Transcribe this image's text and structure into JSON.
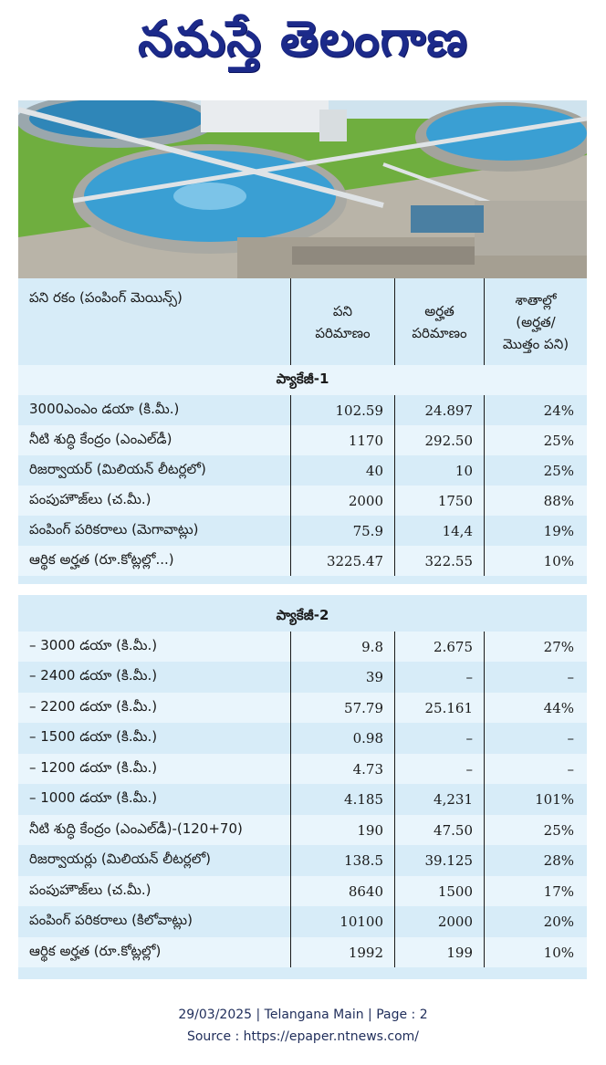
{
  "masthead": {
    "title": "నమస్తే తెలంగాణ"
  },
  "photo": {
    "icon": "water-treatment-plant-photo"
  },
  "table": {
    "header": {
      "col1": "పని రకం (పంపింగ్ మెయిన్స్)",
      "col2_line1": "పని",
      "col2_line2": "పరిమాణం",
      "col3_line1": "అర్హత",
      "col3_line2": "పరిమాణం",
      "col4_line1": "శాతాల్లో",
      "col4_line2": "(అర్హత/",
      "col4_line3": "మొత్తం పని)"
    },
    "package1": {
      "title": "ప్యాకేజీ-1",
      "rows": [
        {
          "work": "3000ఎంఎం డయా (కి.మీ.)",
          "quantity": "102.59",
          "eligible": "24.897",
          "percent": "24%"
        },
        {
          "work": "నీటి శుద్ధి కేంద్రం (ఎంఎల్‌డీ)",
          "quantity": "1170",
          "eligible": "292.50",
          "percent": "25%"
        },
        {
          "work": "రిజర్వాయర్ (మిలియన్ లీటర్లలో)",
          "quantity": "40",
          "eligible": "10",
          "percent": "25%"
        },
        {
          "work": "పంపుహౌజ్‌లు (చ.మీ.)",
          "quantity": "2000",
          "eligible": "1750",
          "percent": "88%"
        },
        {
          "work": "పంపింగ్ పరికరాలు (మెగావాట్లు)",
          "quantity": "75.9",
          "eligible": "14,4",
          "percent": "19%"
        },
        {
          "work": "ఆర్థిక అర్హత (రూ.కోట్లల్లో...)",
          "quantity": "3225.47",
          "eligible": "322.55",
          "percent": "10%"
        }
      ]
    },
    "package2": {
      "title": "ప్యాకేజీ-2",
      "rows": [
        {
          "work": "– 3000 డయా (కి.మీ.)",
          "quantity": "9.8",
          "eligible": "2.675",
          "percent": "27%"
        },
        {
          "work": "– 2400 డయా (కి.మీ.)",
          "quantity": "39",
          "eligible": "–",
          "percent": "–"
        },
        {
          "work": "– 2200 డయా (కి.మీ.)",
          "quantity": "57.79",
          "eligible": "25.161",
          "percent": "44%"
        },
        {
          "work": "– 1500 డయా (కి.మీ.)",
          "quantity": "0.98",
          "eligible": "–",
          "percent": "–"
        },
        {
          "work": "– 1200 డయా (కి.మీ.)",
          "quantity": "4.73",
          "eligible": "–",
          "percent": "–"
        },
        {
          "work": "– 1000 డయా (కి.మీ.)",
          "quantity": "4.185",
          "eligible": "4,231",
          "percent": "101%"
        },
        {
          "work": "నీటి శుద్ధి కేంద్రం (ఎంఎల్‌డీ)-(120+70)",
          "quantity": "190",
          "eligible": "47.50",
          "percent": "25%"
        },
        {
          "work": "రిజర్వాయర్లు (మిలియన్ లీటర్లలో)",
          "quantity": "138.5",
          "eligible": "39.125",
          "percent": "28%"
        },
        {
          "work": "పంపుహౌజ్‌లు (చ.మీ.)",
          "quantity": "8640",
          "eligible": "1500",
          "percent": "17%"
        },
        {
          "work": "పంపింగ్ పరికరాలు (కిలోవాట్లు)",
          "quantity": "10100",
          "eligible": "2000",
          "percent": "20%"
        },
        {
          "work": "ఆర్థిక అర్హత (రూ.కోట్లల్లో)",
          "quantity": "1992",
          "eligible": "199",
          "percent": "10%"
        }
      ]
    }
  },
  "footer": {
    "line1": "29/03/2025 | Telangana Main | Page : 2",
    "line2": "Source : https://epaper.ntnews.com/"
  }
}
